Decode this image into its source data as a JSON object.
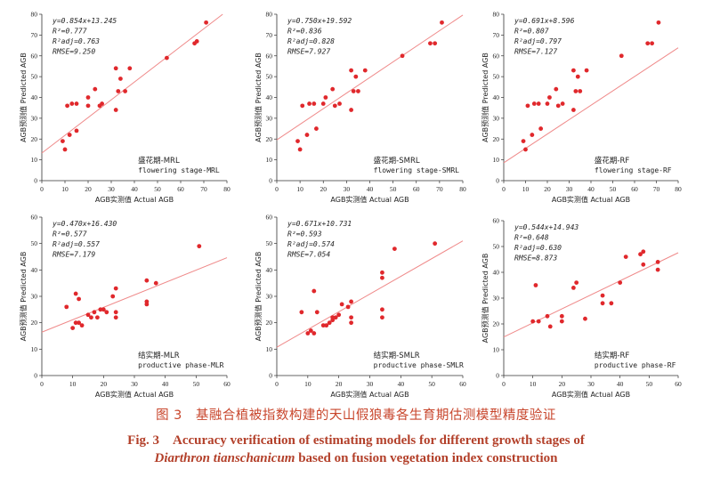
{
  "chart_data": [
    {
      "type": "scatter",
      "stats": [
        "y=0.854x+13.245",
        "R²=0.777",
        "R²adj=0.763",
        "RMSE=9.250"
      ],
      "label_cn": "盛花期-MRL",
      "label_en": "flowering stage-MRL",
      "xlabel": "AGB实测值 Actual AGB",
      "ylabel": "AGB预测值 Predicted AGB",
      "xlim": [
        0,
        80
      ],
      "ylim": [
        0,
        80
      ],
      "xticks": [
        "0",
        "10",
        "20",
        "30",
        "40",
        "50",
        "60",
        "70",
        "80"
      ],
      "yticks": [
        "0",
        "10",
        "20",
        "30",
        "40",
        "50",
        "60",
        "70",
        "80"
      ],
      "fit": {
        "slope": 0.854,
        "intercept": 13.245
      },
      "points": [
        [
          9,
          19
        ],
        [
          10,
          15
        ],
        [
          11,
          36
        ],
        [
          12,
          22
        ],
        [
          13,
          37
        ],
        [
          15,
          37
        ],
        [
          15,
          24
        ],
        [
          20,
          36
        ],
        [
          20,
          40
        ],
        [
          23,
          44
        ],
        [
          25,
          36
        ],
        [
          26,
          37
        ],
        [
          32,
          54
        ],
        [
          33,
          43
        ],
        [
          32,
          34
        ],
        [
          34,
          49
        ],
        [
          36,
          43
        ],
        [
          38,
          54
        ],
        [
          54,
          59
        ],
        [
          66,
          66
        ],
        [
          67,
          67
        ],
        [
          71,
          76
        ]
      ]
    },
    {
      "type": "scatter",
      "stats": [
        "y=0.750x+19.592",
        "R²=0.836",
        "R²adj=0.828",
        "RMSE=7.927"
      ],
      "label_cn": "盛花期-SMRL",
      "label_en": "flowering stage-SMRL",
      "xlabel": "AGB实测值 Actual AGB",
      "ylabel": "AGB预测值 Predicted AGB",
      "xlim": [
        0,
        80
      ],
      "ylim": [
        0,
        80
      ],
      "xticks": [
        "0",
        "10",
        "20",
        "30",
        "40",
        "50",
        "60",
        "70",
        "80"
      ],
      "yticks": [
        "0",
        "10",
        "20",
        "30",
        "40",
        "50",
        "60",
        "70",
        "80"
      ],
      "fit": {
        "slope": 0.75,
        "intercept": 19.592
      },
      "points": [
        [
          9,
          19
        ],
        [
          10,
          15
        ],
        [
          11,
          36
        ],
        [
          13,
          22
        ],
        [
          14,
          37
        ],
        [
          16,
          37
        ],
        [
          17,
          25
        ],
        [
          20,
          37
        ],
        [
          21,
          40
        ],
        [
          24,
          44
        ],
        [
          25,
          36
        ],
        [
          27,
          37
        ],
        [
          32,
          53
        ],
        [
          32,
          34
        ],
        [
          33,
          43
        ],
        [
          34,
          50
        ],
        [
          35,
          43
        ],
        [
          38,
          53
        ],
        [
          54,
          60
        ],
        [
          66,
          66
        ],
        [
          68,
          66
        ],
        [
          71,
          76
        ]
      ]
    },
    {
      "type": "scatter",
      "stats": [
        "y=0.691x+8.596",
        "R²=0.807",
        "R²adj=0.797",
        "RMSE=7.127"
      ],
      "label_cn": "盛花期-RF",
      "label_en": "flowering stage-RF",
      "xlabel": "AGB实测值 Actual AGB",
      "ylabel": "AGB预测值 Predicted AGB",
      "xlim": [
        0,
        80
      ],
      "ylim": [
        0,
        80
      ],
      "xticks": [
        "0",
        "10",
        "20",
        "30",
        "40",
        "50",
        "60",
        "70",
        "80"
      ],
      "yticks": [
        "0",
        "10",
        "20",
        "30",
        "40",
        "50",
        "60",
        "70",
        "80"
      ],
      "fit": {
        "slope": 0.691,
        "intercept": 8.596
      },
      "points": [
        [
          9,
          19
        ],
        [
          10,
          15
        ],
        [
          11,
          36
        ],
        [
          13,
          22
        ],
        [
          14,
          37
        ],
        [
          16,
          37
        ],
        [
          17,
          25
        ],
        [
          20,
          37
        ],
        [
          21,
          40
        ],
        [
          24,
          44
        ],
        [
          25,
          36
        ],
        [
          27,
          37
        ],
        [
          32,
          53
        ],
        [
          32,
          34
        ],
        [
          33,
          43
        ],
        [
          34,
          50
        ],
        [
          35,
          43
        ],
        [
          38,
          53
        ],
        [
          54,
          60
        ],
        [
          66,
          66
        ],
        [
          68,
          66
        ],
        [
          71,
          76
        ]
      ]
    },
    {
      "type": "scatter",
      "stats": [
        "y=0.470x+16.430",
        "R²=0.577",
        "R²adj=0.557",
        "RMSE=7.179"
      ],
      "label_cn": "结实期-MLR",
      "label_en": "productive phase-MLR",
      "xlabel": "AGB实测值 Actual AGB",
      "ylabel": "AGB预测值 Predicted AGB",
      "xlim": [
        0,
        60
      ],
      "ylim": [
        0,
        60
      ],
      "xticks": [
        "0",
        "10",
        "20",
        "30",
        "40",
        "50",
        "60"
      ],
      "yticks": [
        "0",
        "10",
        "20",
        "30",
        "40",
        "50",
        "60"
      ],
      "fit": {
        "slope": 0.47,
        "intercept": 16.43
      },
      "points": [
        [
          8,
          26
        ],
        [
          10,
          18
        ],
        [
          11,
          31
        ],
        [
          11,
          20
        ],
        [
          12,
          29
        ],
        [
          12,
          20
        ],
        [
          13,
          19
        ],
        [
          15,
          23
        ],
        [
          16,
          22
        ],
        [
          17,
          24
        ],
        [
          18,
          22
        ],
        [
          19,
          25
        ],
        [
          20,
          25
        ],
        [
          21,
          24
        ],
        [
          23,
          30
        ],
        [
          24,
          33
        ],
        [
          24,
          24
        ],
        [
          24,
          22
        ],
        [
          34,
          36
        ],
        [
          34,
          28
        ],
        [
          34,
          27
        ],
        [
          37,
          35
        ],
        [
          51,
          49
        ]
      ]
    },
    {
      "type": "scatter",
      "stats": [
        "y=0.671x+10.731",
        "R²=0.593",
        "R²adj=0.574",
        "RMSE=7.054"
      ],
      "label_cn": "结实期-SMLR",
      "label_en": "productive phase-SMLR",
      "xlabel": "AGB实测值 Actual AGB",
      "ylabel": "AGB预测值 Predicted AGB",
      "xlim": [
        0,
        60
      ],
      "ylim": [
        0,
        60
      ],
      "xticks": [
        "0",
        "10",
        "20",
        "30",
        "40",
        "50",
        "60"
      ],
      "yticks": [
        "0",
        "10",
        "20",
        "30",
        "40",
        "50",
        "60"
      ],
      "fit": {
        "slope": 0.671,
        "intercept": 10.731
      },
      "points": [
        [
          8,
          24
        ],
        [
          10,
          16
        ],
        [
          11,
          17
        ],
        [
          12,
          32
        ],
        [
          12,
          16
        ],
        [
          13,
          24
        ],
        [
          15,
          19
        ],
        [
          16,
          19
        ],
        [
          17,
          20
        ],
        [
          18,
          21
        ],
        [
          18,
          22
        ],
        [
          19,
          22
        ],
        [
          20,
          23
        ],
        [
          21,
          27
        ],
        [
          23,
          26
        ],
        [
          24,
          28
        ],
        [
          24,
          22
        ],
        [
          24,
          20
        ],
        [
          34,
          39
        ],
        [
          34,
          37
        ],
        [
          34,
          25
        ],
        [
          34,
          22
        ],
        [
          38,
          48
        ],
        [
          51,
          50
        ]
      ]
    },
    {
      "type": "scatter",
      "stats": [
        "y=0.544x+14.943",
        "R²=0.648",
        "R²adj=0.630",
        "RMSE=8.873"
      ],
      "label_cn": "结实期-RF",
      "label_en": "productive phase-RF",
      "xlabel": "AGB实测值 Actual AGB",
      "ylabel": "AGB预测值 Predicted AGB",
      "xlim": [
        0,
        60
      ],
      "ylim": [
        0,
        60
      ],
      "xticks": [
        "0",
        "10",
        "20",
        "30",
        "40",
        "50",
        "60"
      ],
      "yticks": [
        "0",
        "10",
        "20",
        "30",
        "40",
        "50",
        "60"
      ],
      "fit": {
        "slope": 0.544,
        "intercept": 14.943
      },
      "points": [
        [
          10,
          21
        ],
        [
          11,
          35
        ],
        [
          12,
          21
        ],
        [
          15,
          23
        ],
        [
          16,
          19
        ],
        [
          20,
          23
        ],
        [
          20,
          21
        ],
        [
          24,
          34
        ],
        [
          25,
          36
        ],
        [
          28,
          22
        ],
        [
          34,
          28
        ],
        [
          34,
          31
        ],
        [
          37,
          28
        ],
        [
          40,
          36
        ],
        [
          42,
          46
        ],
        [
          47,
          47
        ],
        [
          48,
          48
        ],
        [
          48,
          43
        ],
        [
          53,
          44
        ],
        [
          53,
          41
        ]
      ]
    }
  ],
  "caption": {
    "cn": "图 3　基融合植被指数构建的天山假狼毒各生育期估测模型精度验证",
    "en_line1": "Fig. 3　Accuracy verification of estimating models for different growth stages of",
    "en_species": "Diarthron tianschanicum",
    "en_line2_rest": " based on fusion vegetation index construction"
  }
}
